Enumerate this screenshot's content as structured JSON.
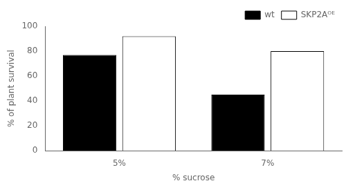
{
  "chart_data": {
    "type": "bar",
    "categories": [
      "5%",
      "7%"
    ],
    "series": [
      {
        "name": "wt",
        "color": "#000000",
        "values": [
          77,
          45
        ]
      },
      {
        "name": "SKP2Aᴼᴱ",
        "color": "#ffffff",
        "values": [
          92,
          80
        ]
      }
    ],
    "xlabel": "% sucrose",
    "ylabel": "% of plant survival",
    "ylim": [
      0,
      100
    ],
    "yticks": [
      0,
      20,
      40,
      60,
      80,
      100
    ],
    "grid": false,
    "legend": "upper right"
  }
}
